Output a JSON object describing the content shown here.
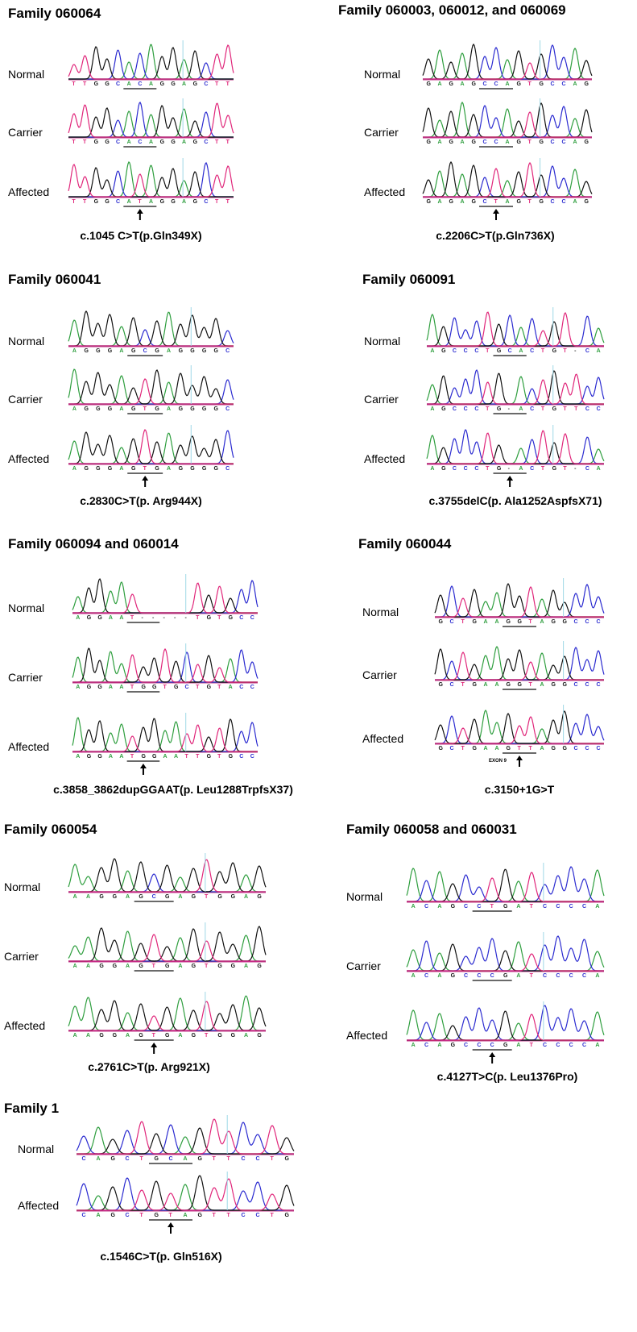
{
  "panels": [
    {
      "title": "Family 060064",
      "rows": [
        {
          "label": "Normal",
          "sequence": "TTGGCACAGGAGCTT"
        },
        {
          "label": "Carrier",
          "sequence": "TTGGCACAGGAGCTT"
        },
        {
          "label": "Affected",
          "sequence": "TTGGCATAGGAGCTT"
        }
      ],
      "caption": "c.1045 C>T(p.Gln349X)"
    },
    {
      "title": "Family 060003, 060012, and 060069",
      "rows": [
        {
          "label": "Normal",
          "sequence": "GAGAGCCAGTGCCAG"
        },
        {
          "label": "Carrier",
          "sequence": "GAGAGCCAGTGCCAG"
        },
        {
          "label": "Affected",
          "sequence": "GAGAGCTAGTGCCAG"
        }
      ],
      "caption": "c.2206C>T(p.Gln736X)"
    },
    {
      "title": "Family 060041",
      "rows": [
        {
          "label": "Normal",
          "sequence": "AGGGAGCGAGGGGC"
        },
        {
          "label": "Carrier",
          "sequence": "AGGGAGTGAGGGGC"
        },
        {
          "label": "Affected",
          "sequence": "AGGGAGTGAGGGGC"
        }
      ],
      "caption": "c.2830C>T(p. Arg944X)"
    },
    {
      "title": "Family 060091",
      "rows": [
        {
          "label": "Normal",
          "sequence": "AGCCCTGCACTGT-CA"
        },
        {
          "label": "Carrier",
          "sequence": "AGCCCTG-ACTGTTCC"
        },
        {
          "label": "Affected",
          "sequence": "AGCCCTG-ACTGT-CA"
        }
      ],
      "caption": "c.3755delC(p. Ala1252AspfsX71)"
    },
    {
      "title": "Family 060094 and 060014",
      "rows": [
        {
          "label": "Normal",
          "sequence": "AGGAAT-----TGTGCC"
        },
        {
          "label": "Carrier",
          "sequence": "AGGAATGGTGCTGTACC"
        },
        {
          "label": "Affected",
          "sequence": "AGGAATGGAATTGTGCC"
        }
      ],
      "caption": "c.3858_3862dupGGAAT(p. Leu1288TrpfsX37)"
    },
    {
      "title": "Family 060044",
      "rows": [
        {
          "label": "Normal",
          "sequence": "GCTGAAGGTAGGCCC"
        },
        {
          "label": "Carrier",
          "sequence": "GCTGAAGGTAGGCCC"
        },
        {
          "label": "Affected",
          "sequence": "GCTGAAGTTAGGCCC"
        }
      ],
      "exon_label": "EXON 9",
      "caption": "c.3150+1G>T"
    },
    {
      "title": "Family 060054",
      "rows": [
        {
          "label": "Normal",
          "sequence": "AAGGAGCGAGTGGAG"
        },
        {
          "label": "Carrier",
          "sequence": "AAGGAGTGAGTGGAG"
        },
        {
          "label": "Affected",
          "sequence": "AAGGAGTGAGTGGAG"
        }
      ],
      "caption": "c.2761C>T(p. Arg921X)"
    },
    {
      "title": "Family 060058 and 060031",
      "rows": [
        {
          "label": "Normal",
          "sequence": "ACAGCCTGATCCCCA"
        },
        {
          "label": "Carrier",
          "sequence": "ACAGCCCGATCCCCA"
        },
        {
          "label": "Affected",
          "sequence": "ACAGCCCGATCCCCA"
        }
      ],
      "caption": "c.4127T>C(p. Leu1376Pro)"
    },
    {
      "title": "Family 1",
      "rows": [
        {
          "label": "Normal",
          "sequence": "CAGCTGCAGTTCCTG"
        },
        {
          "label": "Affected",
          "sequence": "CAGCTGTAGTTCCTG"
        }
      ],
      "caption": "c.1546C>T(p. Gln516X)"
    }
  ]
}
